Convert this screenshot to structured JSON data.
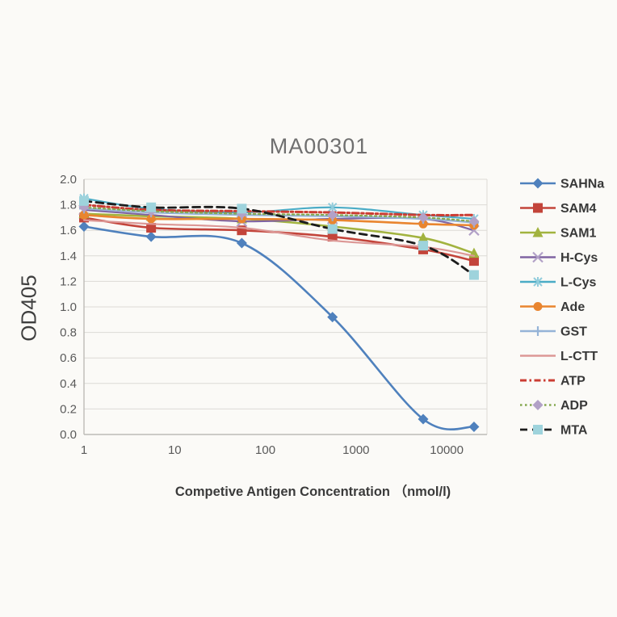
{
  "chart_data": {
    "type": "line",
    "title": "MA00301",
    "xlabel": "Competive Antigen Concentration （nmol/l)",
    "ylabel": "OD405",
    "x_scale": "log",
    "grid": "horizontal",
    "legend_position": "right",
    "x_ticks": [
      "1",
      "10",
      "100",
      "1000",
      "10000"
    ],
    "y_ticks": [
      "2.0",
      "1.8",
      "1.6",
      "1.4",
      "1.2",
      "1.0",
      "0.8",
      "0.6",
      "0.4",
      "0.2",
      "0.0"
    ],
    "xlim": [
      1,
      27800
    ],
    "ylim": [
      0,
      2.0
    ],
    "x": [
      1,
      5.5,
      55,
      550,
      5500,
      20000
    ],
    "series": [
      {
        "name": "SAHNa",
        "color": "#4F81BD",
        "marker": "diamond",
        "marker_color": "#4F81BD",
        "dash": "solid",
        "line_width": 2.6,
        "values": [
          1.63,
          1.55,
          1.5,
          0.92,
          0.12,
          0.06
        ]
      },
      {
        "name": "SAM4",
        "color": "#C3443A",
        "marker": "square",
        "marker_color": "#C3443A",
        "dash": "solid",
        "line_width": 2.6,
        "values": [
          1.7,
          1.62,
          1.6,
          1.55,
          1.45,
          1.36
        ]
      },
      {
        "name": "SAM1",
        "color": "#A2B33F",
        "marker": "triangle",
        "marker_color": "#A2B33F",
        "dash": "solid",
        "line_width": 2.6,
        "values": [
          1.73,
          1.71,
          1.69,
          1.63,
          1.54,
          1.42
        ]
      },
      {
        "name": "H-Cys",
        "color": "#8064A2",
        "marker": "x",
        "marker_color": "#B2A1C7",
        "dash": "solid",
        "line_width": 2.2,
        "values": [
          1.76,
          1.72,
          1.67,
          1.69,
          1.69,
          1.6
        ]
      },
      {
        "name": "L-Cys",
        "color": "#4BACC6",
        "marker": "asterisk",
        "marker_color": "#92CDDC",
        "dash": "solid",
        "line_width": 2.2,
        "values": [
          1.85,
          1.77,
          1.74,
          1.78,
          1.72,
          1.69
        ]
      },
      {
        "name": "Ade",
        "color": "#E9852F",
        "marker": "circle",
        "marker_color": "#E9852F",
        "dash": "solid",
        "line_width": 2.6,
        "values": [
          1.72,
          1.69,
          1.69,
          1.68,
          1.65,
          1.64
        ]
      },
      {
        "name": "GST",
        "color": "#95B3D7",
        "marker": "plus",
        "marker_color": "#95B3D7",
        "dash": "solid",
        "line_width": 2.2,
        "values": [
          1.77,
          1.74,
          1.72,
          1.71,
          1.69,
          1.66
        ]
      },
      {
        "name": "L-CTT",
        "color": "#DC9795",
        "marker": "none",
        "marker_color": "#DC9795",
        "dash": "solid",
        "line_width": 2.2,
        "values": [
          1.68,
          1.65,
          1.62,
          1.52,
          1.47,
          1.4
        ]
      },
      {
        "name": "ATP",
        "color": "#CB3D33",
        "marker": "none",
        "marker_color": "#CB3D33",
        "dash": "dash-dot",
        "line_width": 3.0,
        "values": [
          1.8,
          1.76,
          1.75,
          1.74,
          1.72,
          1.72
        ]
      },
      {
        "name": "ADP",
        "color": "#84A84F",
        "marker": "diamond",
        "marker_color": "#B2A1C7",
        "dash": "dotted",
        "line_width": 2.2,
        "values": [
          1.78,
          1.75,
          1.73,
          1.72,
          1.7,
          1.67
        ]
      },
      {
        "name": "MTA",
        "color": "#1C1C1C",
        "marker": "square",
        "marker_color": "#9ED3DC",
        "dash": "dashed",
        "line_width": 2.8,
        "values": [
          1.83,
          1.78,
          1.77,
          1.61,
          1.48,
          1.25
        ]
      }
    ],
    "style": {
      "background": "#FBFAF7",
      "gridline_color": "#DCDAD6",
      "axis_color": "#BDBBB7",
      "tick_label_color": "#5A5A5A",
      "title_color": "#6F6F6F",
      "legend_label_color": "#383838"
    }
  }
}
